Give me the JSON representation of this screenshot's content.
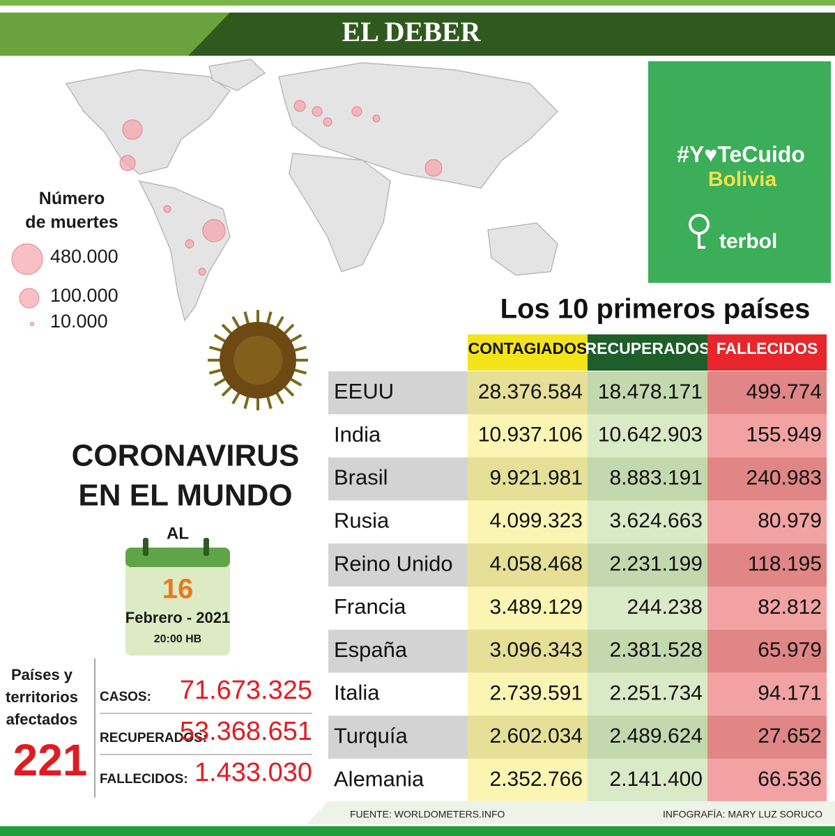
{
  "header": {
    "title": "EL DEBER"
  },
  "legend": {
    "title": "Número de muertes",
    "items": [
      "480.000",
      "100.000",
      "10.000"
    ]
  },
  "campaign": {
    "hashtag": "#Y♥TeCuido",
    "country": "Bolivia",
    "brand": "terbol"
  },
  "table": {
    "title": "Los 10 primeros países",
    "columns": [
      "CONTAGIADOS",
      "RECUPERADOS",
      "FALLECIDOS"
    ],
    "rows": [
      [
        "EEUU",
        "28.376.584",
        "18.478.171",
        "499.774"
      ],
      [
        "India",
        "10.937.106",
        "10.642.903",
        "155.949"
      ],
      [
        "Brasil",
        "9.921.981",
        "8.883.191",
        "240.983"
      ],
      [
        "Rusia",
        "4.099.323",
        "3.624.663",
        "80.979"
      ],
      [
        "Reino Unido",
        "4.058.468",
        "2.231.199",
        "118.195"
      ],
      [
        "Francia",
        "3.489.129",
        "244.238",
        "82.812"
      ],
      [
        "España",
        "3.096.343",
        "2.381.528",
        "65.979"
      ],
      [
        "Italia",
        "2.739.591",
        "2.251.734",
        "94.171"
      ],
      [
        "Turquía",
        "2.602.034",
        "2.489.624",
        "27.652"
      ],
      [
        "Alemania",
        "2.352.766",
        "2.141.400",
        "66.536"
      ]
    ]
  },
  "headline": {
    "title_line1": "CORONAVIRUS",
    "title_line2": "EN EL MUNDO",
    "at": "AL",
    "day": "16",
    "month": "Febrero - 2021",
    "time": "20:00 HB"
  },
  "summary": {
    "countries_label": "Países y territorios afectados",
    "countries": "221",
    "rows": [
      [
        "CASOS:",
        "71.673.325"
      ],
      [
        "RECUPERADOS:",
        "53.368.651"
      ],
      [
        "FALLECIDOS:",
        "1.433.030"
      ]
    ]
  },
  "footer": {
    "source": "FUENTE: WORLDOMETERS.INFO",
    "credit": "INFOGRAFÍA:  MARY LUZ SORUCO"
  }
}
